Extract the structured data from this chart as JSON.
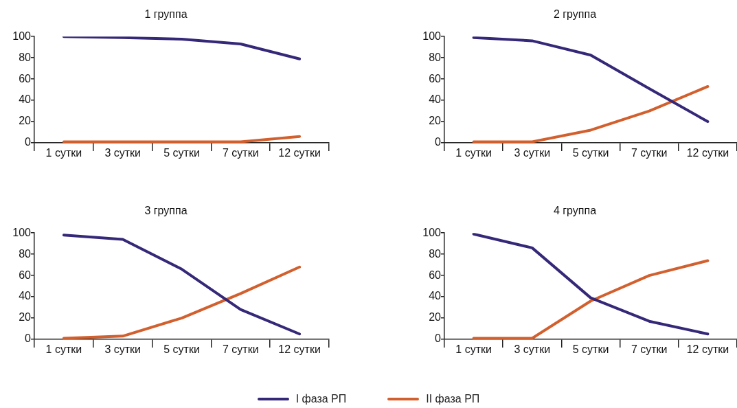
{
  "chart_data": [
    {
      "type": "line",
      "title": "1 группа",
      "legend": "bottom",
      "categories": [
        "1 сутки",
        "3 сутки",
        "5 сутки",
        "7 сутки",
        "12 сутки"
      ],
      "ylim": [
        0,
        100
      ],
      "yticks": [
        0,
        20,
        40,
        60,
        80,
        100
      ],
      "series": [
        {
          "name": "I фаза РП",
          "color": "#352878",
          "values": [
            100,
            99,
            97.5,
            93,
            79
          ]
        },
        {
          "name": "II фаза РП",
          "color": "#d2602e",
          "values": [
            1,
            1,
            1,
            1,
            6
          ]
        }
      ]
    },
    {
      "type": "line",
      "title": "2 группа",
      "legend": "bottom",
      "categories": [
        "1 сутки",
        "3 сутки",
        "5 сутки",
        "7 сутки",
        "12 сутки"
      ],
      "ylim": [
        0,
        100
      ],
      "yticks": [
        0,
        20,
        40,
        60,
        80,
        100
      ],
      "series": [
        {
          "name": "I фаза РП",
          "color": "#352878",
          "values": [
            99,
            96,
            82.5,
            51,
            20
          ]
        },
        {
          "name": "II фаза РП",
          "color": "#d2602e",
          "values": [
            1,
            1,
            12,
            30,
            53
          ]
        }
      ]
    },
    {
      "type": "line",
      "title": "3 группа",
      "legend": "bottom",
      "categories": [
        "1 сутки",
        "3 сутки",
        "5 сутки",
        "7 сутки",
        "12 сутки"
      ],
      "ylim": [
        0,
        100
      ],
      "yticks": [
        0,
        20,
        40,
        60,
        80,
        100
      ],
      "series": [
        {
          "name": "I фаза РП",
          "color": "#352878",
          "values": [
            98,
            94,
            66,
            28,
            5
          ]
        },
        {
          "name": "II фаза РП",
          "color": "#d2602e",
          "values": [
            1,
            3,
            20,
            43,
            68
          ]
        }
      ]
    },
    {
      "type": "line",
      "title": "4 группа",
      "legend": "bottom",
      "categories": [
        "1 сутки",
        "3 сутки",
        "5 сутки",
        "7 сутки",
        "12 сутки"
      ],
      "ylim": [
        0,
        100
      ],
      "yticks": [
        0,
        20,
        40,
        60,
        80,
        100
      ],
      "series": [
        {
          "name": "I фаза РП",
          "color": "#352878",
          "values": [
            99,
            86,
            39,
            17,
            5
          ]
        },
        {
          "name": "II фаза РП",
          "color": "#d2602e",
          "values": [
            1,
            1,
            36,
            60,
            74
          ]
        }
      ]
    }
  ]
}
